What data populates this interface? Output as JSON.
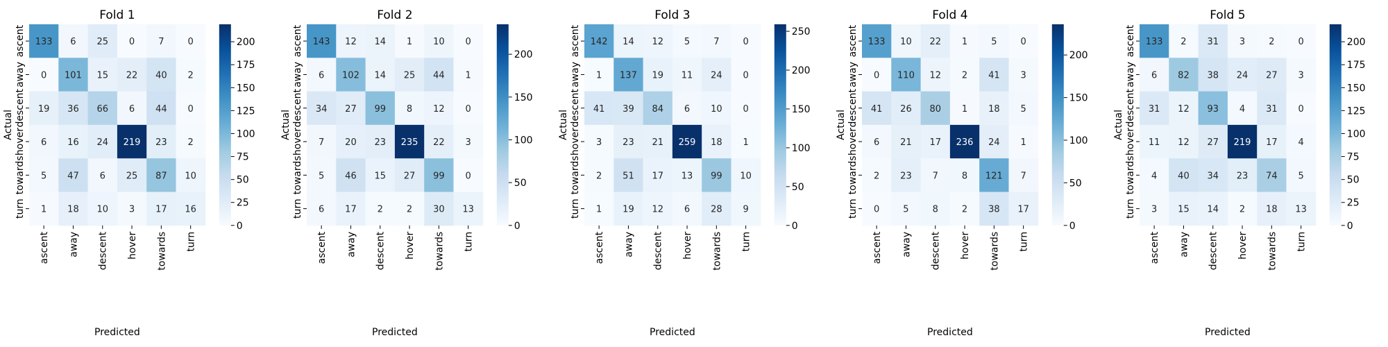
{
  "chart_data": [
    {
      "type": "heatmap",
      "title": "Fold 1",
      "xlabel": "Predicted",
      "ylabel": "Actual",
      "x_categories": [
        "ascent",
        "away",
        "descent",
        "hover",
        "towards",
        "turn"
      ],
      "y_categories": [
        "ascent",
        "away",
        "descent",
        "hover",
        "towards",
        "turn"
      ],
      "values": [
        [
          133,
          6,
          25,
          0,
          7,
          0
        ],
        [
          0,
          101,
          15,
          22,
          40,
          2
        ],
        [
          19,
          36,
          66,
          6,
          44,
          0
        ],
        [
          6,
          16,
          24,
          219,
          23,
          2
        ],
        [
          5,
          47,
          6,
          25,
          87,
          10
        ],
        [
          1,
          18,
          10,
          3,
          17,
          16
        ]
      ],
      "colormap": "Blues",
      "colorbar": {
        "min": 0,
        "max": 219,
        "ticks": [
          0,
          25,
          50,
          75,
          100,
          125,
          150,
          175,
          200
        ]
      }
    },
    {
      "type": "heatmap",
      "title": "Fold 2",
      "xlabel": "Predicted",
      "ylabel": "Actual",
      "x_categories": [
        "ascent",
        "away",
        "descent",
        "hover",
        "towards",
        "turn"
      ],
      "y_categories": [
        "ascent",
        "away",
        "descent",
        "hover",
        "towards",
        "turn"
      ],
      "values": [
        [
          143,
          12,
          14,
          1,
          10,
          0
        ],
        [
          6,
          102,
          14,
          25,
          44,
          1
        ],
        [
          34,
          27,
          99,
          8,
          12,
          0
        ],
        [
          7,
          20,
          23,
          235,
          22,
          3
        ],
        [
          5,
          46,
          15,
          27,
          99,
          0
        ],
        [
          6,
          17,
          2,
          2,
          30,
          13
        ]
      ],
      "colormap": "Blues",
      "colorbar": {
        "min": 0,
        "max": 235,
        "ticks": [
          0,
          50,
          100,
          150,
          200
        ]
      }
    },
    {
      "type": "heatmap",
      "title": "Fold 3",
      "xlabel": "Predicted",
      "ylabel": "Actual",
      "x_categories": [
        "ascent",
        "away",
        "descent",
        "hover",
        "towards",
        "turn"
      ],
      "y_categories": [
        "ascent",
        "away",
        "descent",
        "hover",
        "towards",
        "turn"
      ],
      "values": [
        [
          142,
          14,
          12,
          5,
          7,
          0
        ],
        [
          1,
          137,
          19,
          11,
          24,
          0
        ],
        [
          41,
          39,
          84,
          6,
          10,
          0
        ],
        [
          3,
          23,
          21,
          259,
          18,
          1
        ],
        [
          2,
          51,
          17,
          13,
          99,
          10
        ],
        [
          1,
          19,
          12,
          6,
          28,
          9
        ]
      ],
      "colormap": "Blues",
      "colorbar": {
        "min": 0,
        "max": 259,
        "ticks": [
          0,
          50,
          100,
          150,
          200,
          250
        ]
      }
    },
    {
      "type": "heatmap",
      "title": "Fold 4",
      "xlabel": "Predicted",
      "ylabel": "Actual",
      "x_categories": [
        "ascent",
        "away",
        "descent",
        "hover",
        "towards",
        "turn"
      ],
      "y_categories": [
        "ascent",
        "away",
        "descent",
        "hover",
        "towards",
        "turn"
      ],
      "values": [
        [
          133,
          10,
          22,
          1,
          5,
          0
        ],
        [
          0,
          110,
          12,
          2,
          41,
          3
        ],
        [
          41,
          26,
          80,
          1,
          18,
          5
        ],
        [
          6,
          21,
          17,
          236,
          24,
          1
        ],
        [
          2,
          23,
          7,
          8,
          121,
          7
        ],
        [
          0,
          5,
          8,
          2,
          38,
          17
        ]
      ],
      "colormap": "Blues",
      "colorbar": {
        "min": 0,
        "max": 236,
        "ticks": [
          0,
          50,
          100,
          150,
          200
        ]
      }
    },
    {
      "type": "heatmap",
      "title": "Fold 5",
      "xlabel": "Predicted",
      "ylabel": "Actual",
      "x_categories": [
        "ascent",
        "away",
        "descent",
        "hover",
        "towards",
        "turn"
      ],
      "y_categories": [
        "ascent",
        "away",
        "descent",
        "hover",
        "towards",
        "turn"
      ],
      "values": [
        [
          133,
          2,
          31,
          3,
          2,
          0
        ],
        [
          6,
          82,
          38,
          24,
          27,
          3
        ],
        [
          31,
          12,
          93,
          4,
          31,
          0
        ],
        [
          11,
          12,
          27,
          219,
          17,
          4
        ],
        [
          4,
          40,
          34,
          23,
          74,
          5
        ],
        [
          3,
          15,
          14,
          2,
          18,
          13
        ]
      ],
      "colormap": "Blues",
      "colorbar": {
        "min": 0,
        "max": 219,
        "ticks": [
          0,
          25,
          50,
          75,
          100,
          125,
          150,
          175,
          200
        ]
      }
    }
  ]
}
